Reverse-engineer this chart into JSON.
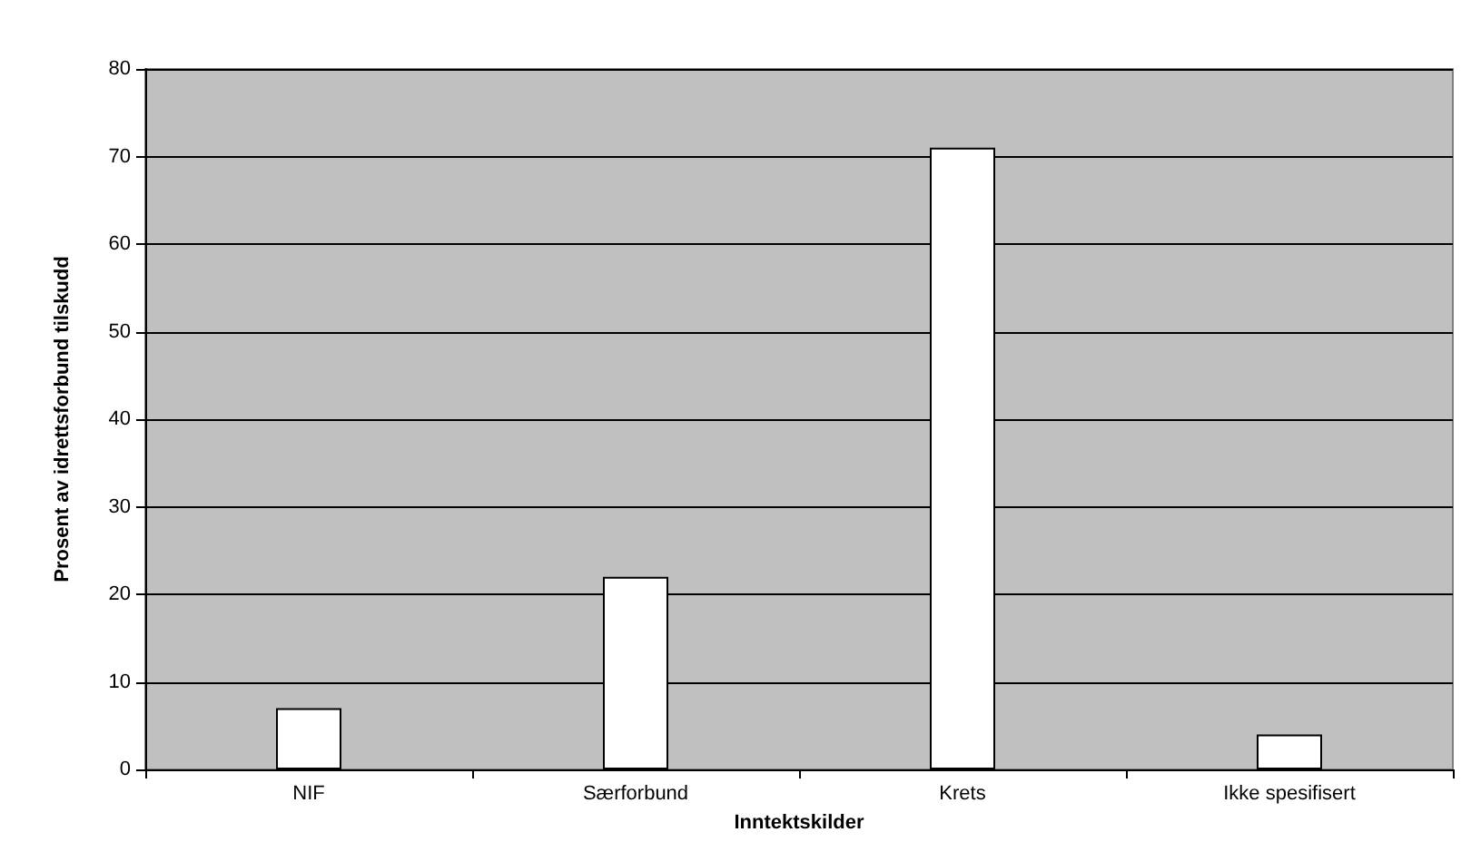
{
  "chart_data": {
    "type": "bar",
    "xlabel": "Inntektskilder",
    "ylabel": "Prosent av idrettsforbund tilskudd",
    "categories": [
      "NIF",
      "Særforbund",
      "Krets",
      "Ikke spesifisert"
    ],
    "values": [
      7,
      22,
      71,
      4
    ],
    "color": "#ffffff",
    "ylim": [
      0,
      80
    ],
    "yticks": [
      0,
      10,
      20,
      30,
      40,
      50,
      60,
      70,
      80
    ],
    "grid": "y"
  }
}
